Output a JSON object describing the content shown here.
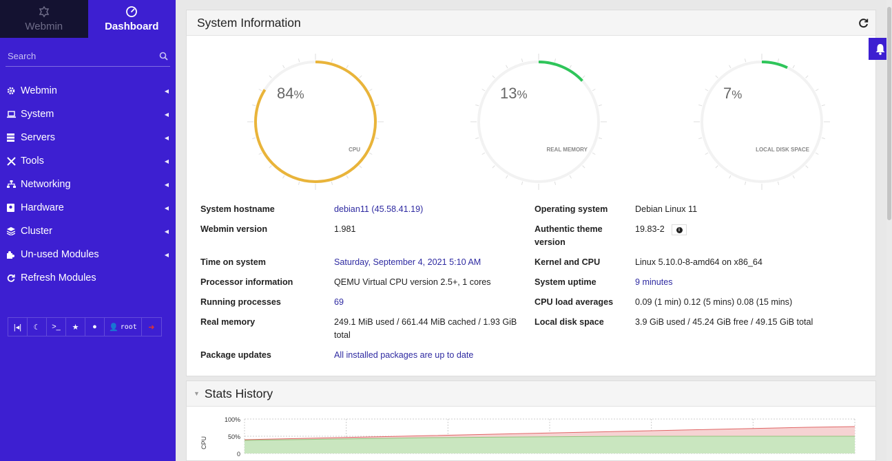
{
  "nav": {
    "webmin": "Webmin",
    "dashboard": "Dashboard"
  },
  "search": {
    "placeholder": "Search"
  },
  "menu": [
    {
      "label": "Webmin",
      "icon": "gear-icon"
    },
    {
      "label": "System",
      "icon": "laptop-icon"
    },
    {
      "label": "Servers",
      "icon": "server-icon"
    },
    {
      "label": "Tools",
      "icon": "tools-icon"
    },
    {
      "label": "Networking",
      "icon": "network-icon"
    },
    {
      "label": "Hardware",
      "icon": "hdd-icon"
    },
    {
      "label": "Cluster",
      "icon": "layers-icon"
    },
    {
      "label": "Un-used Modules",
      "icon": "puzzle-icon"
    },
    {
      "label": "Refresh Modules",
      "icon": "refresh-icon"
    }
  ],
  "toolbar": {
    "user": "root"
  },
  "sysinfo": {
    "title": "System Information",
    "gauges": [
      {
        "value": "84",
        "unit": "%",
        "label": "CPU",
        "percent": 84,
        "color": "#e9b43a"
      },
      {
        "value": "13",
        "unit": "%",
        "label": "REAL MEMORY",
        "percent": 13,
        "color": "#2fc55a"
      },
      {
        "value": "7",
        "unit": "%",
        "label": "LOCAL DISK SPACE",
        "percent": 7,
        "color": "#2fc55a"
      }
    ],
    "left": [
      {
        "key": "System hostname",
        "value": "debian11 (45.58.41.19)",
        "link": true
      },
      {
        "key": "Webmin version",
        "value": "1.981"
      },
      {
        "key": "Time on system",
        "value": "Saturday, September 4, 2021 5:10 AM",
        "link": true
      },
      {
        "key": "Processor information",
        "value": "QEMU Virtual CPU version 2.5+, 1 cores"
      },
      {
        "key": "Running processes",
        "value": "69",
        "link": true
      },
      {
        "key": "Real memory",
        "value": "249.1 MiB used / 661.44 MiB cached / 1.93 GiB total"
      },
      {
        "key": "Package updates",
        "value": "All installed packages are up to date",
        "link": true
      }
    ],
    "right": [
      {
        "key": "Operating system",
        "value": "Debian Linux 11"
      },
      {
        "key": "Authentic theme version",
        "value": "19.83-2"
      },
      {
        "key": "Kernel and CPU",
        "value": "Linux 5.10.0-8-amd64 on x86_64"
      },
      {
        "key": "System uptime",
        "value": "9 minutes",
        "link": true
      },
      {
        "key": "CPU load averages",
        "value": "0.09 (1 min) 0.12 (5 mins) 0.08 (15 mins)"
      },
      {
        "key": "Local disk space",
        "value": "3.9 GiB used / 45.24 GiB free / 49.15 GiB total"
      }
    ]
  },
  "stats": {
    "title": "Stats History",
    "ylabel": "CPU",
    "ticks": [
      "100%",
      "50%",
      "0"
    ]
  },
  "chart_data": {
    "type": "area",
    "ylabel": "CPU",
    "ylim": [
      0,
      100
    ],
    "grid": true,
    "series": [
      {
        "values": [
          40,
          43,
          46,
          49,
          52,
          55,
          58,
          61,
          64,
          67,
          70,
          73,
          76,
          78
        ],
        "color": "#e06666"
      },
      {
        "values": [
          38,
          40,
          42,
          44,
          46,
          47,
          48,
          49,
          50,
          50,
          50,
          50,
          50,
          50
        ],
        "color": "#93c47d"
      }
    ]
  }
}
